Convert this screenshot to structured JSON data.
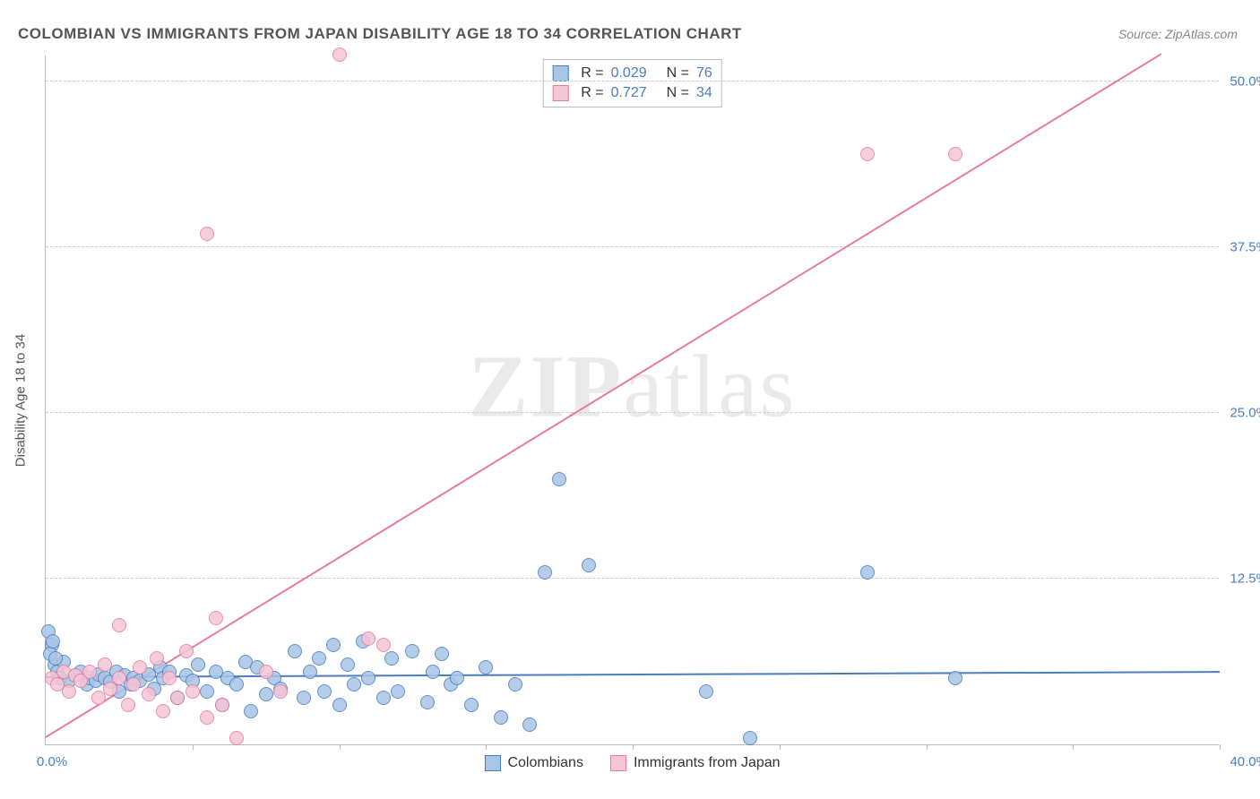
{
  "title": "COLOMBIAN VS IMMIGRANTS FROM JAPAN DISABILITY AGE 18 TO 34 CORRELATION CHART",
  "source_label": "Source: ",
  "source_value": "ZipAtlas.com",
  "watermark_a": "ZIP",
  "watermark_b": "atlas",
  "chart": {
    "type": "scatter",
    "y_axis_label": "Disability Age 18 to 34",
    "xlim": [
      0,
      40
    ],
    "ylim": [
      0,
      52
    ],
    "x_ticks": [
      0,
      5,
      10,
      15,
      20,
      25,
      30,
      35,
      40
    ],
    "y_ticks": [
      12.5,
      25.0,
      37.5,
      50.0
    ],
    "y_tick_labels": [
      "12.5%",
      "25.0%",
      "37.5%",
      "50.0%"
    ],
    "x_min_label": "0.0%",
    "x_max_label": "40.0%",
    "grid_color": "#cccccc",
    "axis_color": "#bbbbbb",
    "background_color": "#ffffff",
    "marker_radius": 8,
    "marker_stroke_width": 1.5,
    "marker_fill_opacity": 0.25,
    "series": [
      {
        "name": "Colombians",
        "color_stroke": "#4a7ebb",
        "color_fill": "#a8c5e8",
        "r_value": "0.029",
        "n_value": "76",
        "regression": {
          "x1": 0,
          "y1": 5.0,
          "x2": 40,
          "y2": 5.4,
          "width": 2
        },
        "points": [
          [
            0.2,
            7.5
          ],
          [
            0.3,
            6.0
          ],
          [
            0.4,
            5.5
          ],
          [
            0.5,
            5.0
          ],
          [
            0.6,
            6.2
          ],
          [
            0.8,
            4.8
          ],
          [
            1.0,
            5.2
          ],
          [
            1.2,
            5.5
          ],
          [
            1.4,
            4.5
          ],
          [
            1.5,
            5.0
          ],
          [
            1.7,
            4.8
          ],
          [
            1.8,
            5.3
          ],
          [
            2.0,
            5.0
          ],
          [
            2.2,
            4.7
          ],
          [
            2.4,
            5.5
          ],
          [
            2.5,
            4.0
          ],
          [
            2.7,
            5.2
          ],
          [
            2.9,
            4.5
          ],
          [
            3.0,
            5.0
          ],
          [
            3.2,
            4.8
          ],
          [
            3.5,
            5.3
          ],
          [
            3.7,
            4.2
          ],
          [
            3.9,
            5.8
          ],
          [
            4.0,
            5.0
          ],
          [
            4.2,
            5.5
          ],
          [
            4.5,
            3.5
          ],
          [
            4.8,
            5.2
          ],
          [
            5.0,
            4.8
          ],
          [
            5.2,
            6.0
          ],
          [
            5.5,
            4.0
          ],
          [
            5.8,
            5.5
          ],
          [
            6.0,
            3.0
          ],
          [
            6.2,
            5.0
          ],
          [
            6.5,
            4.5
          ],
          [
            6.8,
            6.2
          ],
          [
            7.0,
            2.5
          ],
          [
            7.2,
            5.8
          ],
          [
            7.5,
            3.8
          ],
          [
            7.8,
            5.0
          ],
          [
            8.0,
            4.2
          ],
          [
            8.5,
            7.0
          ],
          [
            8.8,
            3.5
          ],
          [
            9.0,
            5.5
          ],
          [
            9.3,
            6.5
          ],
          [
            9.5,
            4.0
          ],
          [
            9.8,
            7.5
          ],
          [
            10.0,
            3.0
          ],
          [
            10.3,
            6.0
          ],
          [
            10.5,
            4.5
          ],
          [
            10.8,
            7.8
          ],
          [
            11.0,
            5.0
          ],
          [
            11.5,
            3.5
          ],
          [
            11.8,
            6.5
          ],
          [
            12.0,
            4.0
          ],
          [
            12.5,
            7.0
          ],
          [
            13.0,
            3.2
          ],
          [
            13.2,
            5.5
          ],
          [
            13.5,
            6.8
          ],
          [
            13.8,
            4.5
          ],
          [
            14.0,
            5.0
          ],
          [
            14.5,
            3.0
          ],
          [
            15.0,
            5.8
          ],
          [
            15.5,
            2.0
          ],
          [
            16.0,
            4.5
          ],
          [
            16.5,
            1.5
          ],
          [
            17.0,
            13.0
          ],
          [
            17.5,
            20.0
          ],
          [
            18.5,
            13.5
          ],
          [
            22.5,
            4.0
          ],
          [
            24.0,
            0.5
          ],
          [
            28.0,
            13.0
          ],
          [
            31.0,
            5.0
          ],
          [
            0.1,
            8.5
          ],
          [
            0.15,
            6.8
          ],
          [
            0.25,
            7.8
          ],
          [
            0.35,
            6.5
          ]
        ]
      },
      {
        "name": "Immigrants from Japan",
        "color_stroke": "#e87ba0",
        "color_fill": "#f5c5d5",
        "r_value": "0.727",
        "n_value": "34",
        "regression": {
          "x1": 0,
          "y1": 0.5,
          "x2": 38,
          "y2": 52,
          "width": 2
        },
        "points": [
          [
            0.2,
            5.0
          ],
          [
            0.4,
            4.5
          ],
          [
            0.6,
            5.5
          ],
          [
            0.8,
            4.0
          ],
          [
            1.0,
            5.2
          ],
          [
            1.2,
            4.8
          ],
          [
            1.5,
            5.5
          ],
          [
            1.8,
            3.5
          ],
          [
            2.0,
            6.0
          ],
          [
            2.2,
            4.2
          ],
          [
            2.5,
            5.0
          ],
          [
            2.8,
            3.0
          ],
          [
            3.0,
            4.5
          ],
          [
            3.2,
            5.8
          ],
          [
            3.5,
            3.8
          ],
          [
            3.8,
            6.5
          ],
          [
            4.0,
            2.5
          ],
          [
            4.2,
            5.0
          ],
          [
            4.5,
            3.5
          ],
          [
            4.8,
            7.0
          ],
          [
            5.0,
            4.0
          ],
          [
            5.5,
            2.0
          ],
          [
            5.8,
            9.5
          ],
          [
            6.0,
            3.0
          ],
          [
            6.5,
            0.5
          ],
          [
            7.5,
            5.5
          ],
          [
            8.0,
            4.0
          ],
          [
            10.0,
            52.0
          ],
          [
            11.0,
            8.0
          ],
          [
            11.5,
            7.5
          ],
          [
            5.5,
            38.5
          ],
          [
            28.0,
            44.5
          ],
          [
            31.0,
            44.5
          ],
          [
            2.5,
            9.0
          ]
        ]
      }
    ]
  },
  "legend_top": {
    "r_label": "R =",
    "n_label": "N ="
  },
  "legend_bottom": {
    "items": [
      "Colombians",
      "Immigrants from Japan"
    ]
  }
}
